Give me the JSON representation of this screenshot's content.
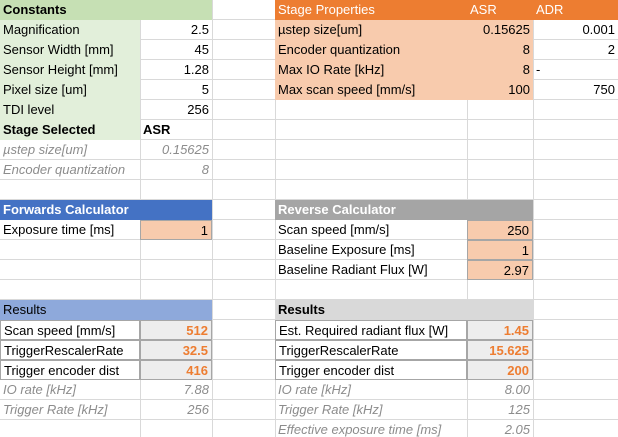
{
  "constants": {
    "title": "Constants",
    "rows": [
      [
        "Magnification",
        "2.5"
      ],
      [
        "Sensor Width [mm]",
        "45"
      ],
      [
        "Sensor Height [mm]",
        "1.28"
      ],
      [
        "Pixel size [um]",
        "5"
      ],
      [
        "TDI level",
        "256"
      ]
    ]
  },
  "stage_selected": {
    "label": "Stage Selected",
    "value": "ASR"
  },
  "derived": [
    [
      "µstep size[um]",
      "0.15625"
    ],
    [
      "Encoder quantization",
      "8"
    ]
  ],
  "stage_properties": {
    "title": "Stage Properties",
    "columns": [
      "ASR",
      "ADR"
    ],
    "rows": [
      [
        "µstep size[um]",
        "0.15625",
        "0.001"
      ],
      [
        "Encoder quantization",
        "8",
        "2"
      ],
      [
        "Max IO Rate [kHz]",
        "8",
        "-"
      ],
      [
        "Max scan speed [mm/s]",
        "100",
        "750"
      ]
    ]
  },
  "forwards": {
    "title": "Forwards Calculator",
    "rows": [
      [
        "Exposure time [ms]",
        "1"
      ]
    ]
  },
  "reverse": {
    "title": "Reverse Calculator",
    "rows": [
      [
        "Scan speed [mm/s]",
        "250"
      ],
      [
        "Baseline Exposure [ms]",
        "1"
      ],
      [
        "Baseline Radiant Flux [W]",
        "2.97"
      ]
    ]
  },
  "forwards_results": {
    "title": "Results",
    "rows": [
      [
        "Scan speed [mm/s]",
        "512"
      ],
      [
        "TriggerRescalerRate",
        "32.5"
      ],
      [
        "Trigger encoder dist",
        "416"
      ]
    ],
    "info_rows": [
      [
        "IO rate [kHz]",
        "7.88"
      ],
      [
        "Trigger Rate [kHz]",
        "256"
      ]
    ]
  },
  "reverse_results": {
    "title": "Results",
    "rows": [
      [
        "Est. Required radiant flux [W]",
        "1.45"
      ],
      [
        "TriggerRescalerRate",
        "15.625"
      ],
      [
        "Trigger encoder dist",
        "200"
      ]
    ],
    "info_rows": [
      [
        "IO rate [kHz]",
        "8.00"
      ],
      [
        "Trigger Rate [kHz]",
        "125"
      ],
      [
        "Effective exposure time [ms]",
        "2.05"
      ]
    ]
  }
}
